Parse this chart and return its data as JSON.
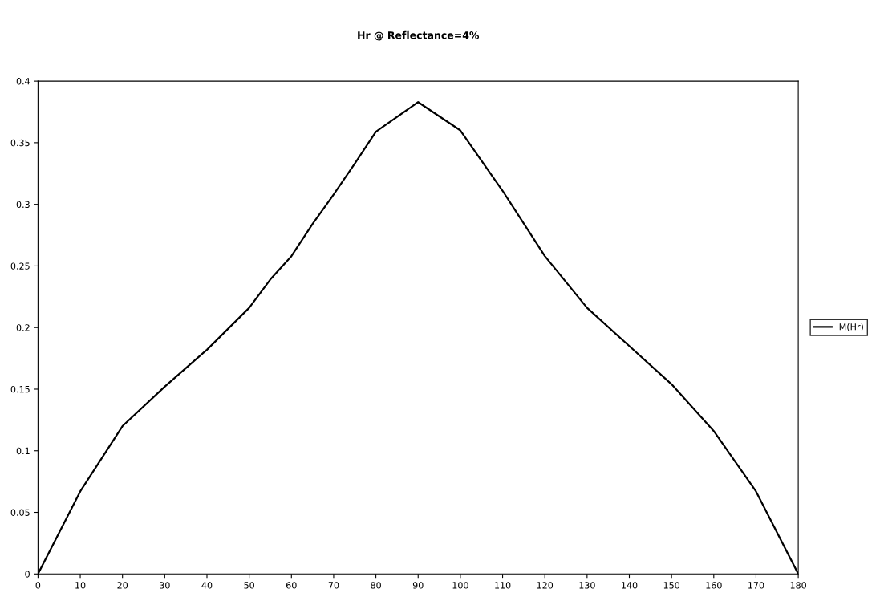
{
  "chart_data": {
    "type": "line",
    "title": "Hr @ Reflectance=4%",
    "x": [
      0,
      10,
      20,
      30,
      40,
      50,
      55,
      60,
      65,
      70,
      75,
      80,
      90,
      100,
      110,
      120,
      130,
      140,
      150,
      160,
      170,
      180
    ],
    "series": [
      {
        "name": "M(Hr)",
        "color": "#000000",
        "values": [
          0,
          0.067,
          0.12,
          0.152,
          0.182,
          0.216,
          0.239,
          0.258,
          0.284,
          0.308,
          0.333,
          0.359,
          0.383,
          0.36,
          0.311,
          0.258,
          0.216,
          0.185,
          0.154,
          0.116,
          0.067,
          0
        ]
      }
    ],
    "xlim": [
      0,
      180
    ],
    "xticks": [
      0,
      10,
      20,
      30,
      40,
      50,
      60,
      70,
      80,
      90,
      100,
      110,
      120,
      130,
      140,
      150,
      160,
      170,
      180
    ],
    "ylim": [
      0,
      0.4
    ],
    "yticks": [
      0,
      0.05,
      0.1,
      0.15,
      0.2,
      0.25,
      0.3,
      0.35,
      0.4
    ],
    "grid": false,
    "legend": "right",
    "marker": "none",
    "line_style": "solid"
  }
}
